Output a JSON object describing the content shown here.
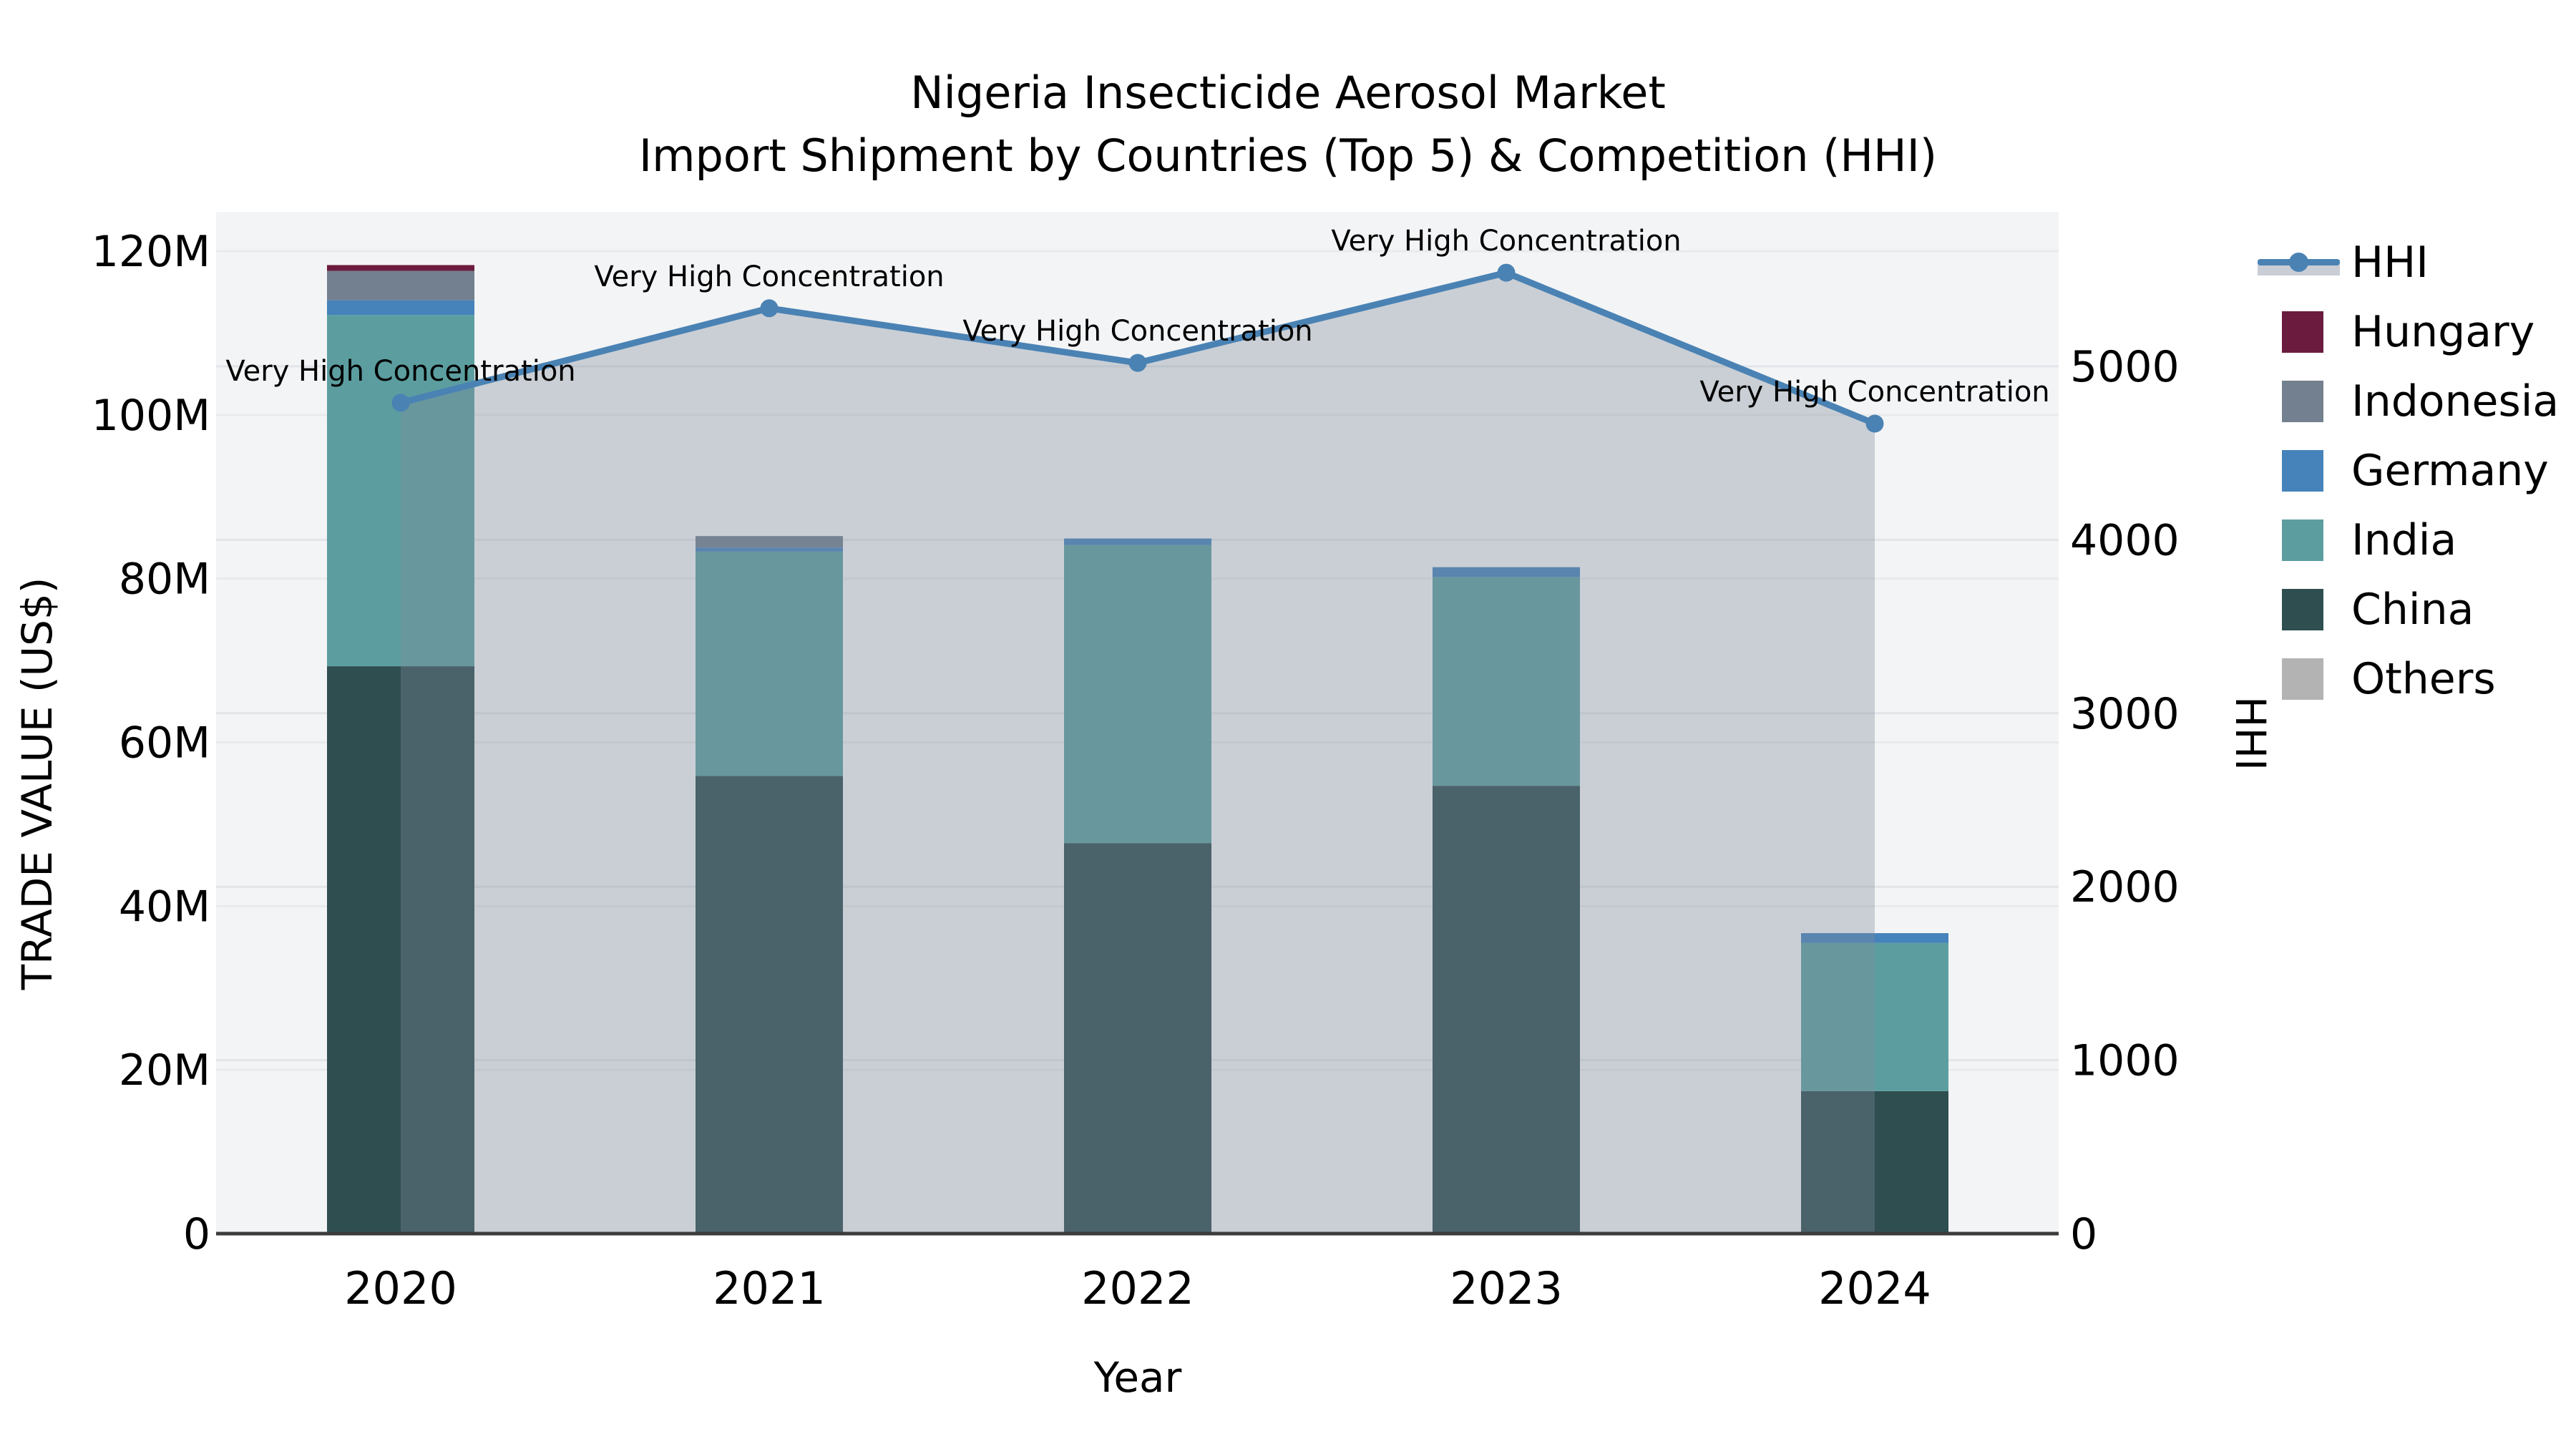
{
  "chart": {
    "title": "Nigeria Insecticide Aerosol Market",
    "subtitle": "Import Shipment by Countries (Top 5) & Competition (HHI)"
  },
  "chart_data": {
    "type": "bar+line",
    "title": "Nigeria Insecticide Aerosol Market",
    "subtitle": "Import Shipment by Countries (Top 5) & Competition (HHI)",
    "xlabel": "Year",
    "ylabel_left": "TRADE VALUE (US$)",
    "ylabel_right": "HHI",
    "categories": [
      "2020",
      "2021",
      "2022",
      "2023",
      "2024"
    ],
    "unit_left": "US$ millions",
    "series": [
      {
        "name": "China",
        "color": "#2F4E50",
        "values": [
          69.3,
          55.9,
          47.7,
          54.7,
          17.4
        ]
      },
      {
        "name": "India",
        "color": "#5C9EA0",
        "values": [
          42.9,
          27.4,
          36.4,
          25.5,
          18.1
        ]
      },
      {
        "name": "Germany",
        "color": "#4583BA",
        "values": [
          1.8,
          0.5,
          0.8,
          1.2,
          1.2
        ]
      },
      {
        "name": "Indonesia",
        "color": "#72808F",
        "values": [
          3.6,
          1.4,
          0,
          0,
          0
        ]
      },
      {
        "name": "Hungary",
        "color": "#6B1B3D",
        "values": [
          0.7,
          0,
          0,
          0,
          0
        ]
      },
      {
        "name": "Others",
        "color": "#B3B3B3",
        "values": [
          0,
          0,
          0,
          0,
          0
        ]
      }
    ],
    "hhi_line": {
      "name": "HHI",
      "color": "#4A82B4",
      "area_fill": "rgba(126,137,155,0.35)",
      "values": [
        4790,
        5335,
        5020,
        5540,
        4670
      ]
    },
    "annotations": [
      {
        "text": "Very High Concentration"
      },
      {
        "text": "Very High Concentration"
      },
      {
        "text": "Very High Concentration"
      },
      {
        "text": "Very High Concentration"
      },
      {
        "text": "Very High Concentration"
      }
    ],
    "left_axis": {
      "min": 0,
      "max": 120,
      "tick_values": [
        0,
        20,
        40,
        60,
        80,
        100,
        120
      ],
      "tick_labels": [
        "0",
        "20M",
        "40M",
        "60M",
        "80M",
        "100M",
        "120M"
      ]
    },
    "right_axis": {
      "min": 0,
      "max": 5000,
      "tick_values": [
        0,
        1000,
        2000,
        3000,
        4000,
        5000
      ],
      "tick_labels": [
        "0",
        "1000",
        "2000",
        "3000",
        "4000",
        "5000"
      ]
    },
    "legend": [
      {
        "label": "HHI",
        "type": "line",
        "color": "#4A82B4"
      },
      {
        "label": "Hungary",
        "type": "patch",
        "color": "#6B1B3D"
      },
      {
        "label": "Indonesia",
        "type": "patch",
        "color": "#72808F"
      },
      {
        "label": "Germany",
        "type": "patch",
        "color": "#4583BA"
      },
      {
        "label": "India",
        "type": "patch",
        "color": "#5C9EA0"
      },
      {
        "label": "China",
        "type": "patch",
        "color": "#2F4E50"
      },
      {
        "label": "Others",
        "type": "patch",
        "color": "#B3B3B3"
      }
    ],
    "colors": {
      "plot_bg": "#F3F4F5",
      "grid_left": "#E9EAEC",
      "grid_right": "#E2E5E9",
      "axis_line": "#3C3C3C",
      "text": "#000000"
    },
    "grid": true,
    "legend_position": "right"
  }
}
